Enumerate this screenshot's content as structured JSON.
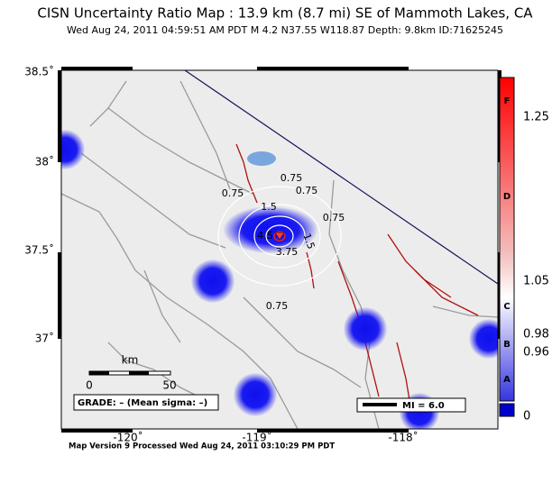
{
  "header": {
    "title": "CISN Uncertainty Ratio Map : 13.9 km (8.7 mi) SE of Mammoth Lakes, CA",
    "subtitle": "Wed Aug 24, 2011 04:59:51 AM PDT   M 4.2   N37.55 W118.87   Depth: 9.8km   ID:71625245"
  },
  "map": {
    "lat_labels": [
      "38.5˚",
      "38˚",
      "37.5˚",
      "37˚"
    ],
    "lon_labels": [
      "-120˚",
      "-119˚",
      "-118˚"
    ],
    "contour_labels": [
      "0.75",
      "0.75",
      "0.75",
      "0.75",
      "1.5",
      "4.5",
      "3.75",
      "1.5",
      "0.75"
    ],
    "scale": {
      "unit": "km",
      "start": "0",
      "end": "50"
    },
    "grade": "GRADE: – (Mean sigma: –)",
    "legend": "MI = 6.0"
  },
  "colorbar": {
    "letters": [
      "F",
      "D",
      "C",
      "B",
      "A"
    ],
    "labels": [
      "1.25",
      "1.05",
      "0.98",
      "0.96",
      "0"
    ]
  },
  "footer": "Map Version 9 Processed Wed Aug 24, 2011 03:10:29 PM PDT"
}
